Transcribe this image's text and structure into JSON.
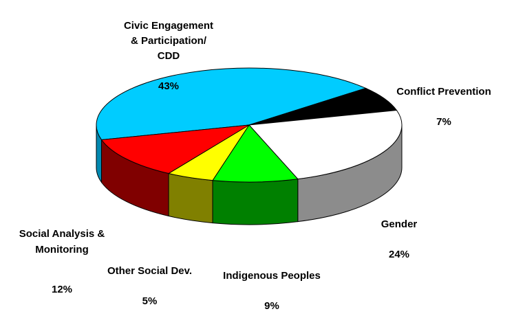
{
  "chart_data": {
    "type": "pie",
    "title": "",
    "style": "3d-exploded-tilted",
    "slices": [
      {
        "label": "Civic Engagement\n& Participation/\nCDD",
        "value": 43,
        "value_label": "43%",
        "color": "#00CCFF",
        "side_color": "#0088B0"
      },
      {
        "label": "Conflict Prevention",
        "value": 7,
        "value_label": "7%",
        "color": "#000000",
        "side_color": "#000000"
      },
      {
        "label": "Gender",
        "value": 24,
        "value_label": "24%",
        "color": "#FFFFFF",
        "side_color": "#8C8C8C"
      },
      {
        "label": "Indigenous Peoples",
        "value": 9,
        "value_label": "9%",
        "color": "#00FF00",
        "side_color": "#008000"
      },
      {
        "label": "Other Social Dev.",
        "value": 5,
        "value_label": "5%",
        "color": "#FFFF00",
        "side_color": "#808000"
      },
      {
        "label": "Social Analysis &\nMonitoring",
        "value": 12,
        "value_label": "12%",
        "color": "#FF0000",
        "side_color": "#800000"
      }
    ]
  }
}
